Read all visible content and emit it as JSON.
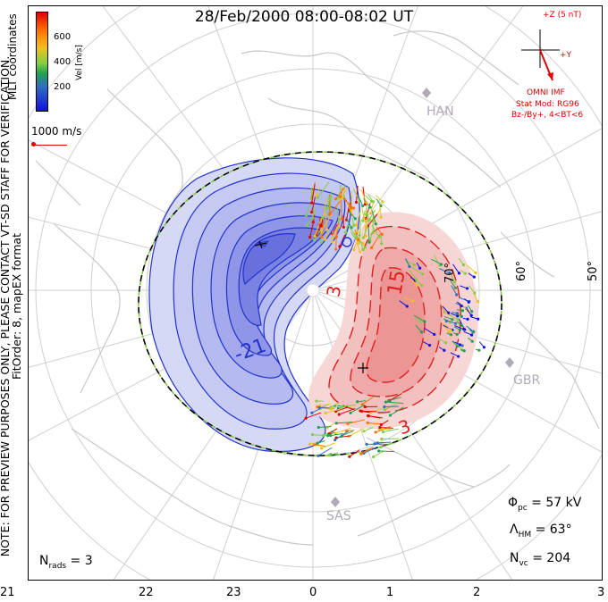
{
  "title": "28/Feb/2000 08:00-08:02 UT",
  "side_note": [
    "NOTE: FOR PREVIEW PURPOSES ONLY, PLEASE CONTACT VT-SD STAFF FOR VERIFICATION.",
    "FitOrder: 8, mapEX format"
  ],
  "legend": {
    "coord_label": "MLT coordinates",
    "vel_label": "Vel [m/s]",
    "ticks": [
      "600",
      "400",
      "200"
    ],
    "ref_vector": "1000 m/s"
  },
  "imf": {
    "z_label": "+Z (5 nT)",
    "y_label": "+Y",
    "source": "OMNI IMF",
    "model": "Stat Mod: RG96",
    "condition": "Bz-/By+, 4<BT<6"
  },
  "contours": {
    "neg_label": "-21",
    "pos_label_1": "15",
    "pos_label_2": "3",
    "pos_label_3": "3"
  },
  "stations": [
    "HAN",
    "GBR",
    "SAS"
  ],
  "lat_labels": [
    "70°",
    "60°",
    "50°"
  ],
  "stats": {
    "phi_pc": "57 kV",
    "lambda_hm": "63°",
    "n_vc": "204",
    "n_rads": "3"
  },
  "mlt_ticks": [
    "21",
    "22",
    "23",
    "0",
    "1",
    "2",
    "3"
  ],
  "colors": {
    "negative": "#4a5ae0",
    "positive": "#e05050",
    "imf": "#e00000",
    "boundary_green": "#7ecb3a"
  }
}
